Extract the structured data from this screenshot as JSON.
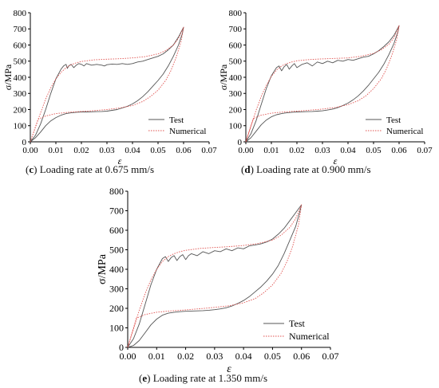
{
  "chart_data": [
    {
      "type": "line",
      "panel_letter": "c",
      "caption_rest": "Loading rate at 0.675 mm/s",
      "xlabel": "ε",
      "ylabel": "σ/MPa",
      "xlim": [
        0,
        0.07
      ],
      "ylim": [
        0,
        800
      ],
      "xticks": [
        "0.00",
        "0.01",
        "0.02",
        "0.03",
        "0.04",
        "0.05",
        "0.06",
        "0.07"
      ],
      "yticks": [
        "0",
        "100",
        "200",
        "300",
        "400",
        "500",
        "600",
        "700",
        "800"
      ],
      "legend_position": "lower-right",
      "series": [
        {
          "name": "Test",
          "color": "#555555",
          "style": "solid",
          "x": [
            0.0,
            0.002,
            0.004,
            0.006,
            0.008,
            0.01,
            0.012,
            0.013,
            0.014,
            0.0145,
            0.015,
            0.016,
            0.017,
            0.018,
            0.019,
            0.02,
            0.021,
            0.022,
            0.023,
            0.024,
            0.026,
            0.028,
            0.029,
            0.03,
            0.032,
            0.034,
            0.036,
            0.038,
            0.04,
            0.042,
            0.044,
            0.046,
            0.048,
            0.05,
            0.052,
            0.054,
            0.056,
            0.058,
            0.06,
            0.0595,
            0.058,
            0.056,
            0.054,
            0.052,
            0.05,
            0.048,
            0.046,
            0.044,
            0.042,
            0.04,
            0.038,
            0.036,
            0.034,
            0.032,
            0.03,
            0.028,
            0.026,
            0.024,
            0.022,
            0.02,
            0.018,
            0.016,
            0.014,
            0.012,
            0.01,
            0.008,
            0.006,
            0.004,
            0.002,
            0.0
          ],
          "y": [
            0,
            40,
            110,
            200,
            300,
            390,
            450,
            470,
            480,
            455,
            470,
            480,
            460,
            475,
            485,
            480,
            470,
            485,
            480,
            475,
            480,
            475,
            470,
            478,
            482,
            480,
            485,
            480,
            485,
            495,
            500,
            510,
            520,
            530,
            545,
            570,
            600,
            650,
            710,
            670,
            600,
            530,
            470,
            420,
            380,
            345,
            310,
            280,
            255,
            235,
            220,
            210,
            200,
            195,
            190,
            188,
            187,
            186,
            185,
            185,
            183,
            180,
            175,
            165,
            150,
            130,
            100,
            60,
            25,
            0
          ]
        },
        {
          "name": "Numerical",
          "color": "#e0524f",
          "style": "dotted",
          "x": [
            0.0,
            0.002,
            0.004,
            0.006,
            0.008,
            0.01,
            0.012,
            0.014,
            0.016,
            0.018,
            0.02,
            0.025,
            0.03,
            0.035,
            0.04,
            0.045,
            0.05,
            0.053,
            0.056,
            0.058,
            0.06,
            0.059,
            0.057,
            0.055,
            0.053,
            0.05,
            0.047,
            0.044,
            0.04,
            0.035,
            0.03,
            0.025,
            0.02,
            0.015,
            0.01,
            0.006,
            0.003,
            0.0
          ],
          "y": [
            0,
            90,
            180,
            265,
            335,
            390,
            430,
            460,
            478,
            490,
            498,
            508,
            512,
            515,
            520,
            528,
            545,
            565,
            600,
            640,
            710,
            620,
            520,
            440,
            380,
            320,
            280,
            250,
            225,
            210,
            200,
            193,
            188,
            183,
            175,
            160,
            140,
            0
          ]
        }
      ]
    },
    {
      "type": "line",
      "panel_letter": "d",
      "caption_rest": "Loading rate at 0.900 mm/s",
      "xlabel": "ε",
      "ylabel": "σ/MPa",
      "xlim": [
        0,
        0.07
      ],
      "ylim": [
        0,
        800
      ],
      "xticks": [
        "0.00",
        "0.01",
        "0.02",
        "0.03",
        "0.04",
        "0.05",
        "0.06",
        "0.07"
      ],
      "yticks": [
        "0",
        "100",
        "200",
        "300",
        "400",
        "500",
        "600",
        "700",
        "800"
      ],
      "legend_position": "lower-right",
      "series": [
        {
          "name": "Test",
          "color": "#555555",
          "style": "solid",
          "x": [
            0.0,
            0.002,
            0.004,
            0.006,
            0.008,
            0.01,
            0.012,
            0.013,
            0.014,
            0.015,
            0.016,
            0.017,
            0.018,
            0.019,
            0.02,
            0.022,
            0.024,
            0.026,
            0.028,
            0.03,
            0.032,
            0.034,
            0.036,
            0.038,
            0.04,
            0.042,
            0.044,
            0.046,
            0.048,
            0.05,
            0.052,
            0.054,
            0.056,
            0.058,
            0.06,
            0.0595,
            0.058,
            0.056,
            0.054,
            0.052,
            0.05,
            0.048,
            0.046,
            0.044,
            0.042,
            0.04,
            0.038,
            0.036,
            0.034,
            0.032,
            0.03,
            0.028,
            0.026,
            0.024,
            0.022,
            0.02,
            0.018,
            0.016,
            0.014,
            0.012,
            0.01,
            0.008,
            0.006,
            0.004,
            0.002,
            0.0
          ],
          "y": [
            0,
            50,
            130,
            230,
            330,
            410,
            460,
            470,
            440,
            465,
            480,
            450,
            470,
            485,
            460,
            480,
            490,
            470,
            495,
            485,
            500,
            490,
            505,
            500,
            510,
            505,
            515,
            525,
            530,
            545,
            565,
            590,
            620,
            660,
            720,
            680,
            610,
            540,
            480,
            430,
            390,
            350,
            315,
            285,
            260,
            240,
            225,
            212,
            203,
            197,
            192,
            190,
            188,
            187,
            186,
            185,
            183,
            180,
            175,
            168,
            155,
            135,
            105,
            65,
            25,
            0
          ]
        },
        {
          "name": "Numerical",
          "color": "#e0524f",
          "style": "dotted",
          "x": [
            0.0,
            0.002,
            0.004,
            0.006,
            0.008,
            0.01,
            0.012,
            0.014,
            0.016,
            0.018,
            0.02,
            0.025,
            0.03,
            0.035,
            0.04,
            0.045,
            0.05,
            0.053,
            0.056,
            0.058,
            0.06,
            0.059,
            0.057,
            0.055,
            0.053,
            0.05,
            0.047,
            0.044,
            0.04,
            0.035,
            0.03,
            0.025,
            0.02,
            0.015,
            0.01,
            0.006,
            0.003,
            0.0
          ],
          "y": [
            0,
            100,
            195,
            280,
            350,
            405,
            445,
            470,
            485,
            495,
            502,
            510,
            514,
            517,
            520,
            530,
            548,
            570,
            605,
            645,
            720,
            630,
            530,
            450,
            390,
            330,
            285,
            255,
            230,
            213,
            203,
            196,
            190,
            185,
            178,
            165,
            145,
            0
          ]
        }
      ]
    },
    {
      "type": "line",
      "panel_letter": "e",
      "caption_rest": "Loading rate at 1.350 mm/s",
      "xlabel": "ε",
      "ylabel": "σ/MPa",
      "xlim": [
        0,
        0.07
      ],
      "ylim": [
        0,
        800
      ],
      "xticks": [
        "0.00",
        "0.01",
        "0.02",
        "0.03",
        "0.04",
        "0.05",
        "0.06",
        "0.07"
      ],
      "yticks": [
        "0",
        "100",
        "200",
        "300",
        "400",
        "500",
        "600",
        "700",
        "800"
      ],
      "legend_position": "lower-right",
      "series": [
        {
          "name": "Test",
          "color": "#555555",
          "style": "solid",
          "x": [
            0.0,
            0.002,
            0.004,
            0.006,
            0.008,
            0.01,
            0.012,
            0.013,
            0.014,
            0.015,
            0.016,
            0.017,
            0.018,
            0.019,
            0.02,
            0.021,
            0.022,
            0.024,
            0.026,
            0.028,
            0.03,
            0.032,
            0.034,
            0.036,
            0.038,
            0.04,
            0.042,
            0.044,
            0.046,
            0.048,
            0.05,
            0.052,
            0.054,
            0.056,
            0.058,
            0.06,
            0.0595,
            0.058,
            0.056,
            0.054,
            0.052,
            0.05,
            0.048,
            0.046,
            0.044,
            0.042,
            0.04,
            0.038,
            0.036,
            0.034,
            0.032,
            0.03,
            0.028,
            0.026,
            0.024,
            0.022,
            0.02,
            0.018,
            0.016,
            0.014,
            0.012,
            0.01,
            0.008,
            0.006,
            0.004,
            0.002,
            0.0
          ],
          "y": [
            0,
            45,
            120,
            220,
            320,
            400,
            455,
            465,
            440,
            460,
            470,
            445,
            465,
            475,
            450,
            470,
            480,
            470,
            490,
            480,
            495,
            490,
            505,
            495,
            510,
            505,
            520,
            525,
            530,
            540,
            555,
            580,
            610,
            650,
            690,
            730,
            700,
            620,
            550,
            480,
            420,
            375,
            340,
            310,
            285,
            260,
            240,
            225,
            212,
            203,
            197,
            193,
            190,
            188,
            187,
            186,
            185,
            183,
            180,
            175,
            165,
            145,
            115,
            75,
            35,
            10,
            0
          ]
        },
        {
          "name": "Numerical",
          "color": "#e0524f",
          "style": "dotted",
          "x": [
            0.0,
            0.002,
            0.004,
            0.006,
            0.008,
            0.01,
            0.012,
            0.014,
            0.016,
            0.018,
            0.02,
            0.025,
            0.03,
            0.035,
            0.04,
            0.045,
            0.05,
            0.053,
            0.056,
            0.058,
            0.06,
            0.059,
            0.057,
            0.055,
            0.053,
            0.05,
            0.047,
            0.044,
            0.04,
            0.035,
            0.03,
            0.025,
            0.02,
            0.015,
            0.01,
            0.006,
            0.003,
            0.0
          ],
          "y": [
            0,
            95,
            190,
            275,
            345,
            400,
            440,
            465,
            480,
            490,
            497,
            507,
            512,
            516,
            522,
            532,
            550,
            575,
            615,
            660,
            730,
            630,
            520,
            440,
            380,
            320,
            280,
            250,
            228,
            213,
            205,
            198,
            192,
            187,
            180,
            168,
            150,
            0
          ]
        }
      ]
    }
  ]
}
